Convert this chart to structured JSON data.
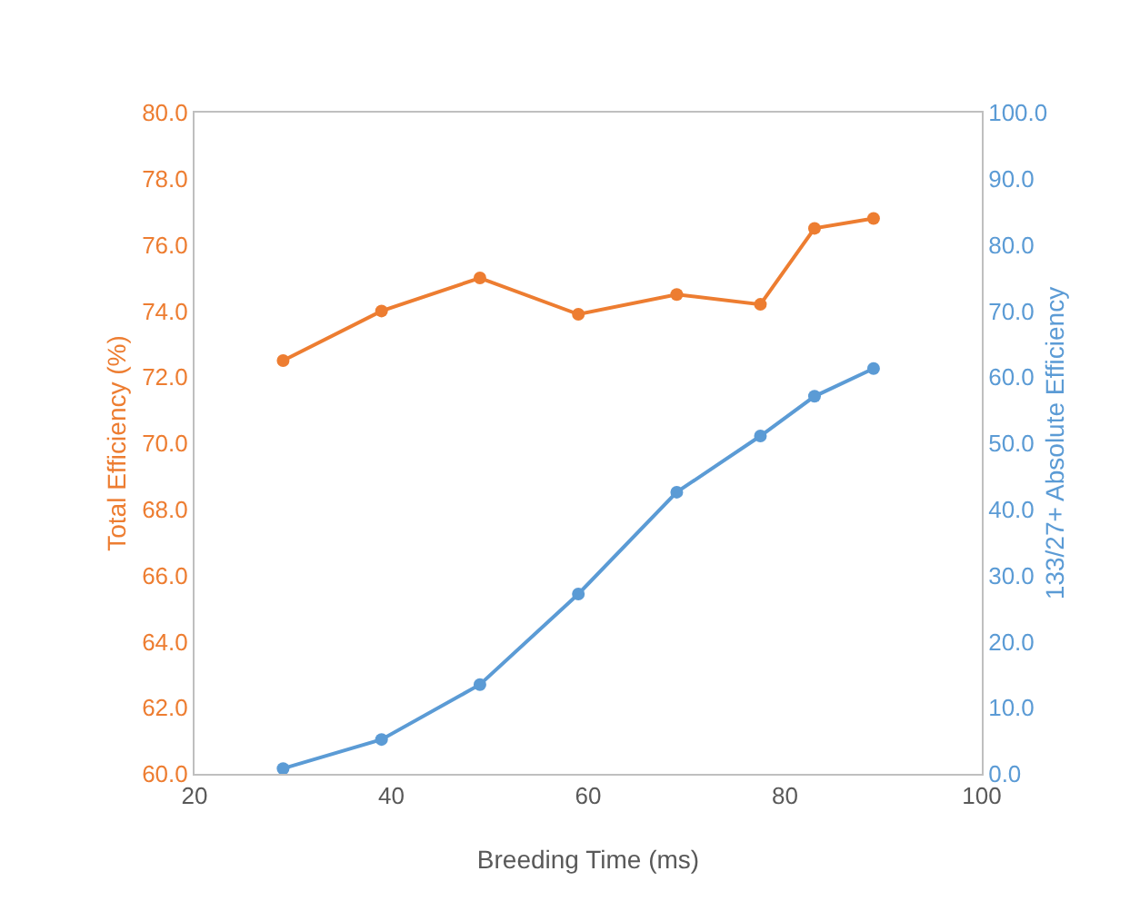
{
  "chart_data": {
    "type": "line",
    "xlabel": "Breeding Time (ms)",
    "ylabel": "Total Efficiency (%)",
    "y2label": "133/27+ Absolute Efficiency",
    "x": [
      29,
      39,
      49,
      59,
      69,
      77.5,
      83,
      89
    ],
    "series": [
      {
        "color": "#ed7d31",
        "values": [
          72.5,
          74.0,
          75.0,
          73.9,
          74.5,
          74.2,
          76.5,
          76.8
        ]
      },
      {
        "color": "#5b9bd5",
        "axis": "y2",
        "values": [
          0.8,
          5.2,
          13.5,
          27.2,
          42.6,
          51.1,
          57.1,
          61.3
        ]
      }
    ],
    "xlim": [
      20,
      100
    ],
    "xticks": [
      20,
      40,
      60,
      80,
      100
    ],
    "ylim": [
      60,
      80
    ],
    "yticks": [
      {
        "value": 60,
        "label": "60.0"
      },
      {
        "value": 62,
        "label": "62.0"
      },
      {
        "value": 64,
        "label": "64.0"
      },
      {
        "value": 66,
        "label": "66.0"
      },
      {
        "value": 68,
        "label": "68.0"
      },
      {
        "value": 70,
        "label": "70.0"
      },
      {
        "value": 72,
        "label": "72.0"
      },
      {
        "value": 74,
        "label": "74.0"
      },
      {
        "value": 76,
        "label": "76.0"
      },
      {
        "value": 78,
        "label": "78.0"
      },
      {
        "value": 80,
        "label": "80.0"
      }
    ],
    "y2lim": [
      0,
      100
    ],
    "y2ticks": [
      {
        "value": 0,
        "label": "0.0"
      },
      {
        "value": 10,
        "label": "10.0"
      },
      {
        "value": 20,
        "label": "20.0"
      },
      {
        "value": 30,
        "label": "30.0"
      },
      {
        "value": 40,
        "label": "40.0"
      },
      {
        "value": 50,
        "label": "50.0"
      },
      {
        "value": 60,
        "label": "60.0"
      },
      {
        "value": 70,
        "label": "70.0"
      },
      {
        "value": 80,
        "label": "80.0"
      },
      {
        "value": 90,
        "label": "90.0"
      },
      {
        "value": 100,
        "label": "100.0"
      }
    ],
    "grid": false,
    "marker": "circle",
    "line_style": "solid"
  }
}
